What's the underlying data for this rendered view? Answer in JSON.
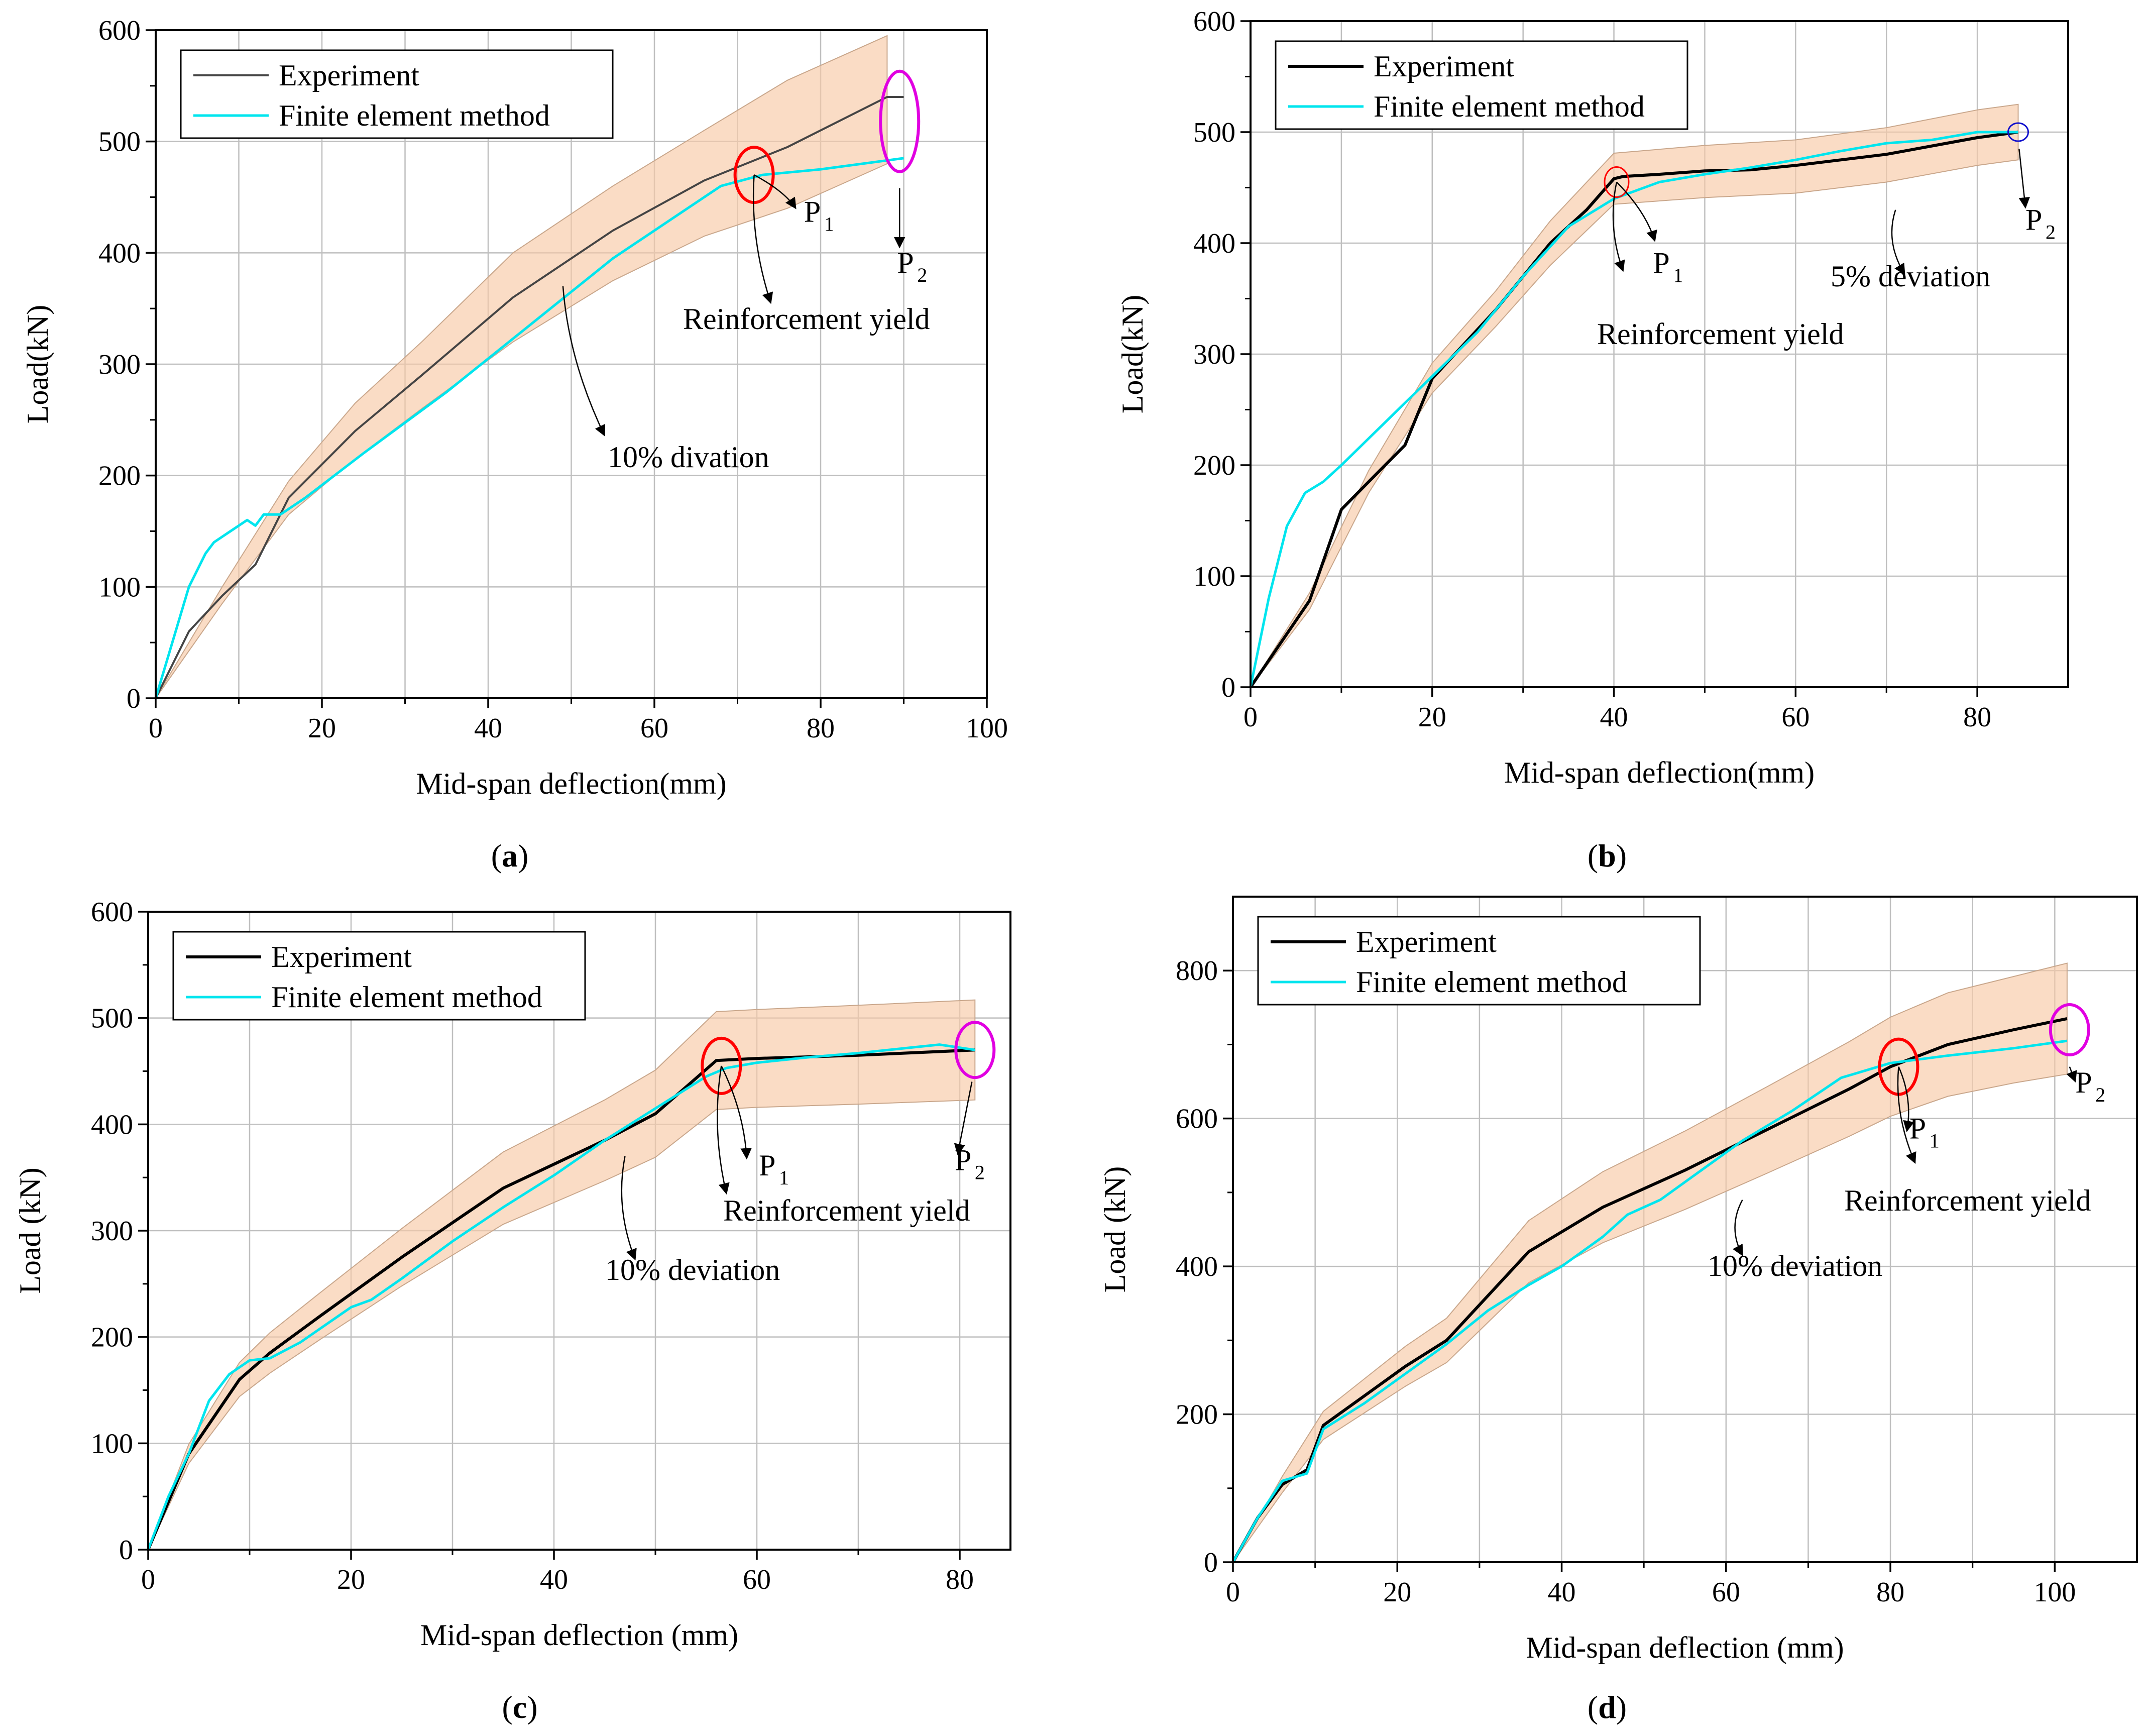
{
  "figure": {
    "colors": {
      "experiment": "#000000",
      "experiment_a": "#444444",
      "fem": "#00e5ee",
      "band": "#f7c9a6",
      "band_edge": "#c9a78c",
      "grid": "#bfbfbf",
      "p1_marker": "#ff0000",
      "p2_marker": "#e100e1",
      "p2_marker_b": "#1010cc"
    }
  },
  "chart_data": [
    {
      "panel_label": "a",
      "type": "line",
      "xlabel": "Mid-span deflection(mm)",
      "ylabel": "Load(kN)",
      "xlim": [
        0,
        100
      ],
      "ylim": [
        0,
        600
      ],
      "xticks": [
        "0",
        "20",
        "40",
        "60",
        "80",
        "100"
      ],
      "yticks": [
        "0",
        "100",
        "200",
        "300",
        "400",
        "500",
        "600"
      ],
      "grid": true,
      "legend_position": "top-left",
      "legend": [
        "Experiment",
        "Finite element method"
      ],
      "series": [
        {
          "name": "Experiment",
          "x": [
            0,
            4,
            8,
            12,
            16,
            24,
            32,
            43,
            55,
            66,
            76,
            88,
            90
          ],
          "y": [
            0,
            60,
            92,
            120,
            180,
            240,
            290,
            360,
            420,
            465,
            495,
            540,
            540
          ]
        },
        {
          "name": "Finite element method",
          "x": [
            0,
            2,
            4,
            6,
            7,
            8,
            9,
            10,
            11,
            12,
            13,
            15,
            18,
            25,
            35,
            45,
            55,
            62,
            68,
            73,
            80,
            90
          ],
          "y": [
            0,
            50,
            100,
            130,
            140,
            145,
            150,
            155,
            160,
            155,
            165,
            165,
            180,
            220,
            275,
            335,
            395,
            430,
            460,
            470,
            475,
            485
          ]
        }
      ],
      "band": {
        "x": [
          0,
          8,
          16,
          24,
          32,
          43,
          55,
          66,
          76,
          88
        ],
        "lower": [
          0,
          85,
          165,
          215,
          260,
          320,
          375,
          415,
          440,
          480
        ],
        "upper": [
          0,
          100,
          195,
          265,
          320,
          400,
          460,
          510,
          555,
          595
        ]
      },
      "annotations": {
        "p1": "P",
        "p1_sub": "1",
        "p2": "P",
        "p2_sub": "2",
        "yield": "Reinforcement yield",
        "deviation": "10% divation"
      }
    },
    {
      "panel_label": "b",
      "type": "line",
      "xlabel": "Mid-span deflection(mm)",
      "ylabel": "Load(kN)",
      "xlim": [
        0,
        90
      ],
      "ylim": [
        0,
        600
      ],
      "xticks": [
        "0",
        "20",
        "40",
        "60",
        "80"
      ],
      "yticks": [
        "0",
        "100",
        "200",
        "300",
        "400",
        "500",
        "600"
      ],
      "grid": true,
      "legend_position": "top-left",
      "legend": [
        "Experiment",
        "Finite element method"
      ],
      "series": [
        {
          "name": "Experiment",
          "x": [
            0,
            6.5,
            10,
            13,
            17,
            20,
            27,
            33,
            37,
            40,
            41,
            45,
            50,
            55,
            60,
            70,
            80,
            84.5
          ],
          "y": [
            0,
            78,
            160,
            185,
            218,
            278,
            340,
            400,
            430,
            458,
            460,
            462,
            465,
            466,
            470,
            480,
            495,
            500
          ]
        },
        {
          "name": "Finite element method",
          "x": [
            0,
            2,
            4,
            6,
            8,
            10,
            15,
            20,
            25,
            30,
            35,
            40,
            45,
            50,
            55,
            60,
            65,
            70,
            75,
            80,
            84.5
          ],
          "y": [
            0,
            80,
            145,
            175,
            185,
            200,
            240,
            280,
            320,
            370,
            415,
            440,
            455,
            462,
            468,
            475,
            483,
            490,
            493,
            500,
            500
          ]
        }
      ],
      "band": {
        "x": [
          0,
          6.5,
          13,
          20,
          27,
          33,
          40,
          50,
          60,
          70,
          80,
          84.5
        ],
        "lower": [
          0,
          70,
          175,
          265,
          325,
          380,
          435,
          441,
          445,
          455,
          470,
          475
        ],
        "upper": [
          0,
          85,
          195,
          292,
          357,
          420,
          481,
          488,
          493,
          504,
          520,
          525
        ]
      },
      "annotations": {
        "p1": "P",
        "p1_sub": "1",
        "p2": "P",
        "p2_sub": "2",
        "yield": "Reinforcement yield",
        "deviation": "5% deviation"
      }
    },
    {
      "panel_label": "c",
      "type": "line",
      "xlabel": "Mid-span deflection (mm)",
      "ylabel": "Load (kN)",
      "xlim": [
        0,
        85
      ],
      "ylim": [
        0,
        600
      ],
      "xticks": [
        "0",
        "20",
        "40",
        "60",
        "80"
      ],
      "yticks": [
        "0",
        "100",
        "200",
        "300",
        "400",
        "500",
        "600"
      ],
      "grid": true,
      "legend_position": "top-left",
      "legend": [
        "Experiment",
        "Finite element method"
      ],
      "series": [
        {
          "name": "Experiment",
          "x": [
            0,
            4,
            9,
            12,
            17,
            25,
            35,
            45,
            50,
            53,
            56,
            60,
            70,
            81.5
          ],
          "y": [
            0,
            90,
            160,
            185,
            220,
            275,
            340,
            385,
            410,
            435,
            460,
            462,
            465,
            470
          ]
        },
        {
          "name": "Finite element method",
          "x": [
            0,
            2,
            4,
            6,
            8,
            10,
            12,
            15,
            20,
            22,
            25,
            30,
            35,
            40,
            45,
            50,
            55,
            57,
            60,
            65,
            70,
            75,
            78,
            81.5
          ],
          "y": [
            0,
            50,
            90,
            140,
            165,
            178,
            180,
            195,
            228,
            235,
            255,
            290,
            322,
            352,
            385,
            415,
            445,
            453,
            458,
            463,
            467,
            472,
            475,
            470
          ]
        }
      ],
      "band": {
        "x": [
          0,
          4,
          9,
          12,
          17,
          25,
          35,
          45,
          50,
          56,
          60,
          70,
          81.5
        ],
        "lower": [
          0,
          81,
          144,
          166,
          198,
          248,
          306,
          347,
          369,
          414,
          416,
          419,
          423
        ],
        "upper": [
          0,
          99,
          176,
          204,
          242,
          302,
          374,
          423,
          451,
          506,
          508,
          512,
          517
        ]
      },
      "annotations": {
        "p1": "P",
        "p1_sub": "1",
        "p2": "P",
        "p2_sub": "2",
        "yield": "Reinforcement yield",
        "deviation": "10% deviation"
      }
    },
    {
      "panel_label": "d",
      "type": "line",
      "xlabel": "Mid-span deflection (mm)",
      "ylabel": "Load (kN)",
      "xlim": [
        0,
        110
      ],
      "ylim": [
        0,
        900
      ],
      "xticks": [
        "0",
        "20",
        "40",
        "60",
        "80",
        "100"
      ],
      "yticks": [
        "0",
        "200",
        "400",
        "600",
        "800"
      ],
      "grid": true,
      "legend_position": "top-left",
      "legend": [
        "Experiment",
        "Finite element method"
      ],
      "series": [
        {
          "name": "Experiment",
          "x": [
            0,
            3,
            6,
            9,
            11,
            16,
            21,
            26,
            31,
            36,
            45,
            55,
            65,
            75,
            80,
            87,
            95,
            101.5
          ],
          "y": [
            0,
            60,
            105,
            125,
            185,
            225,
            265,
            300,
            360,
            420,
            480,
            530,
            585,
            640,
            670,
            700,
            720,
            735
          ]
        },
        {
          "name": "Finite element method",
          "x": [
            0,
            3,
            6,
            9,
            11,
            16,
            21,
            26,
            31,
            36,
            40,
            45,
            48,
            52,
            57,
            62,
            68,
            74,
            80,
            87,
            95,
            101.5
          ],
          "y": [
            0,
            60,
            110,
            120,
            180,
            215,
            255,
            295,
            340,
            375,
            400,
            440,
            470,
            490,
            530,
            570,
            610,
            655,
            675,
            685,
            695,
            705
          ]
        }
      ],
      "band": {
        "x": [
          0,
          6,
          11,
          16,
          21,
          26,
          31,
          36,
          45,
          55,
          65,
          75,
          80,
          87,
          95,
          101.5
        ],
        "lower": [
          0,
          94,
          166,
          202,
          238,
          270,
          324,
          378,
          432,
          477,
          526,
          576,
          603,
          630,
          648,
          660
        ],
        "upper": [
          0,
          116,
          204,
          248,
          292,
          330,
          396,
          462,
          528,
          583,
          643,
          704,
          737,
          770,
          792,
          810
        ]
      },
      "annotations": {
        "p1": "P",
        "p1_sub": "1",
        "p2": "P",
        "p2_sub": "2",
        "yield": "Reinforcement yield",
        "deviation": "10% deviation"
      }
    }
  ]
}
